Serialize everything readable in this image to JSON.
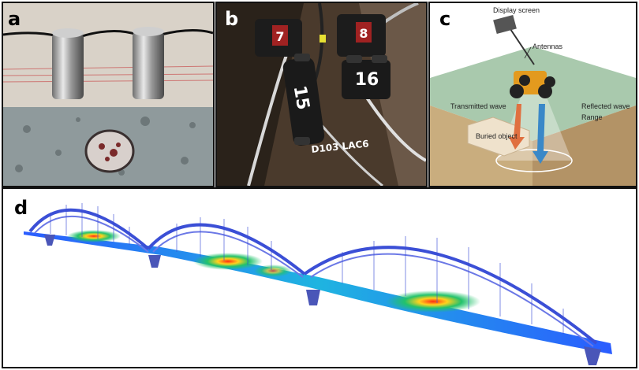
{
  "panels": {
    "a": {
      "letter": "a"
    },
    "b": {
      "letter": "b",
      "tags": [
        "7",
        "8",
        "15",
        "16"
      ],
      "handwriting": "D103 LAC6"
    },
    "c": {
      "letter": "c",
      "labels": {
        "display": "Display screen",
        "antennas": "Antennas",
        "transmitted": "Transmitted wave",
        "reflected": "Reflected wave",
        "range": "Range",
        "buried": "Buried object"
      }
    },
    "d": {
      "letter": "d"
    }
  },
  "colors": {
    "bridge_arch": "#3b4fd6",
    "heat_low": "#2a5cff",
    "heat_mid": "#22c26b",
    "heat_high": "#ff3a1a",
    "panel_border": "#111111"
  }
}
